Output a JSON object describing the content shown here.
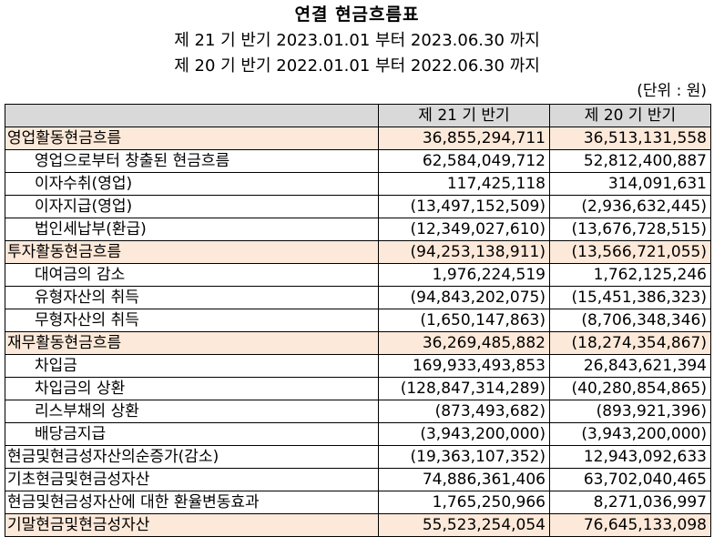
{
  "title": "연결 현금흐름표",
  "periods": [
    "제 21 기 반기 2023.01.01 부터 2023.06.30 까지",
    "제 20 기 반기 2022.01.01 부터 2022.06.30 까지"
  ],
  "unit": "(단위 : 원)",
  "table": {
    "header": [
      "",
      "제 21 기 반기",
      "제 20 기 반기"
    ],
    "rows": [
      {
        "label": "영업활동현금흐름",
        "v21": "36,855,294,711",
        "v20": "36,513,131,558"
      },
      {
        "label": "영업으로부터 창출된 현금흐름",
        "v21": "62,584,049,712",
        "v20": "52,812,400,887"
      },
      {
        "label": "이자수취(영업)",
        "v21": "117,425,118",
        "v20": "314,091,631"
      },
      {
        "label": "이자지급(영업)",
        "v21": "(13,497,152,509)",
        "v20": "(2,936,632,445)"
      },
      {
        "label": "법인세납부(환급)",
        "v21": "(12,349,027,610)",
        "v20": "(13,676,728,515)"
      },
      {
        "label": "투자활동현금흐름",
        "v21": "(94,253,138,911)",
        "v20": "(13,566,721,055)"
      },
      {
        "label": "대여금의 감소",
        "v21": "1,976,224,519",
        "v20": "1,762,125,246"
      },
      {
        "label": "유형자산의 취득",
        "v21": "(94,843,202,075)",
        "v20": "(15,451,386,323)"
      },
      {
        "label": "무형자산의 취득",
        "v21": "(1,650,147,863)",
        "v20": "(8,706,348,346)"
      },
      {
        "label": "재무활동현금흐름",
        "v21": "36,269,485,882",
        "v20": "(18,274,354,867)"
      },
      {
        "label": "차입금",
        "v21": "169,933,493,853",
        "v20": "26,843,621,394"
      },
      {
        "label": "차입금의 상환",
        "v21": "(128,847,314,289)",
        "v20": "(40,280,854,865)"
      },
      {
        "label": "리스부채의 상환",
        "v21": "(873,493,682)",
        "v20": "(893,921,396)"
      },
      {
        "label": "배당금지급",
        "v21": "(3,943,200,000)",
        "v20": "(3,943,200,000)"
      },
      {
        "label": "현금및현금성자산의순증가(감소)",
        "v21": "(19,363,107,352)",
        "v20": "12,943,092,633"
      },
      {
        "label": "기초현금및현금성자산",
        "v21": "74,886,361,406",
        "v20": "63,702,040,465"
      },
      {
        "label": "현금및현금성자산에 대한 환율변동효과",
        "v21": "1,765,250,966",
        "v20": "8,271,036,997"
      },
      {
        "label": "기말현금및현금성자산",
        "v21": "55,523,254,054",
        "v20": "76,645,133,098"
      }
    ]
  },
  "colors": {
    "header_bg": "#d9d9d9",
    "highlight_bg": "#fde9d9"
  }
}
